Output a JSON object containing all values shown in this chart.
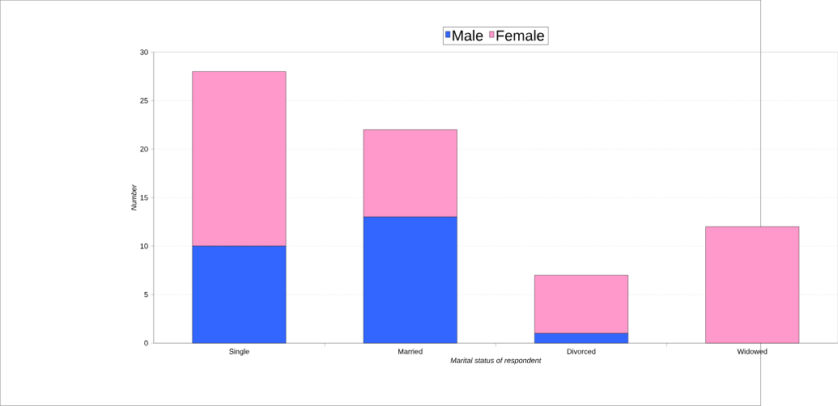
{
  "chart_data": {
    "type": "bar",
    "stacked": true,
    "xlabel": "Marital status of respondent",
    "ylabel": "Number",
    "categories": [
      "Single",
      "Married",
      "Divorced",
      "Widowed"
    ],
    "series": [
      {
        "name": "Male",
        "color": "#3366ff",
        "values": [
          10,
          13,
          1,
          0
        ]
      },
      {
        "name": "Female",
        "color": "#ff99cc",
        "values": [
          18,
          9,
          6,
          12
        ]
      }
    ],
    "ylim": [
      0,
      30
    ],
    "yticks": [
      0,
      5,
      10,
      15,
      20,
      25,
      30
    ],
    "grid": "y",
    "legend": "top"
  }
}
